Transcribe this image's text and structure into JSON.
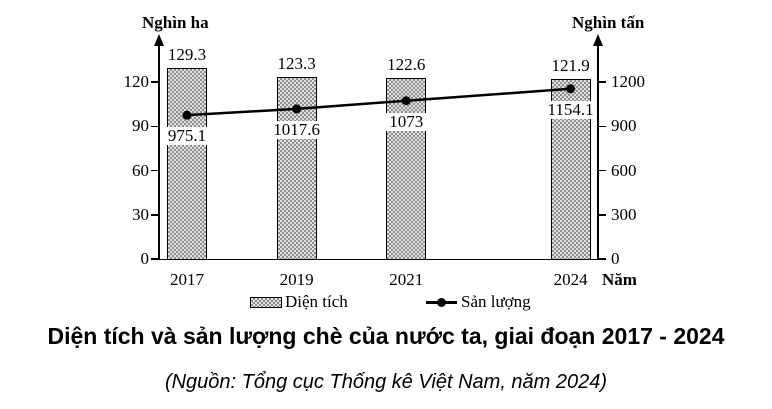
{
  "colors": {
    "ink": "#000000",
    "background": "#ffffff",
    "bar_pattern_dark": "#8f8f8f",
    "bar_pattern_light": "#e0e0e0"
  },
  "chart_data": {
    "type": "bar",
    "title": "Diện tích và sản lượng chè của nước ta, giai đoạn 2017 - 2024",
    "source": "(Nguồn: Tổng cục Thống kê Việt Nam, năm 2024)",
    "x": [
      2017,
      2019,
      2021,
      2024
    ],
    "categories": [
      "2017",
      "2019",
      "2021",
      "2024"
    ],
    "series": [
      {
        "name": "Diện tích",
        "type": "bar",
        "axis": "left",
        "values": [
          129.3,
          123.3,
          122.6,
          121.9
        ],
        "labels": [
          "129.3",
          "123.3",
          "122.6",
          "121.9"
        ]
      },
      {
        "name": "Sản lượng",
        "type": "line",
        "axis": "right",
        "values": [
          975.1,
          1017.6,
          1073,
          1154.1
        ],
        "labels": [
          "975.1",
          "1017.6",
          "1073",
          "1154.1"
        ]
      }
    ],
    "left_axis": {
      "title": "Nghìn ha",
      "ticks": [
        0,
        30,
        60,
        90,
        120
      ],
      "range": [
        0,
        120
      ]
    },
    "right_axis": {
      "title": "Nghìn tấn",
      "ticks": [
        0,
        300,
        600,
        900,
        1200
      ],
      "range": [
        0,
        1200
      ]
    },
    "x_axis": {
      "title": "Năm"
    },
    "legend": [
      {
        "label": "Diện tích",
        "marker": "bar-swatch"
      },
      {
        "label": "Sản lượng",
        "marker": "line-dot"
      }
    ],
    "grid": false,
    "legend_position": "bottom"
  }
}
